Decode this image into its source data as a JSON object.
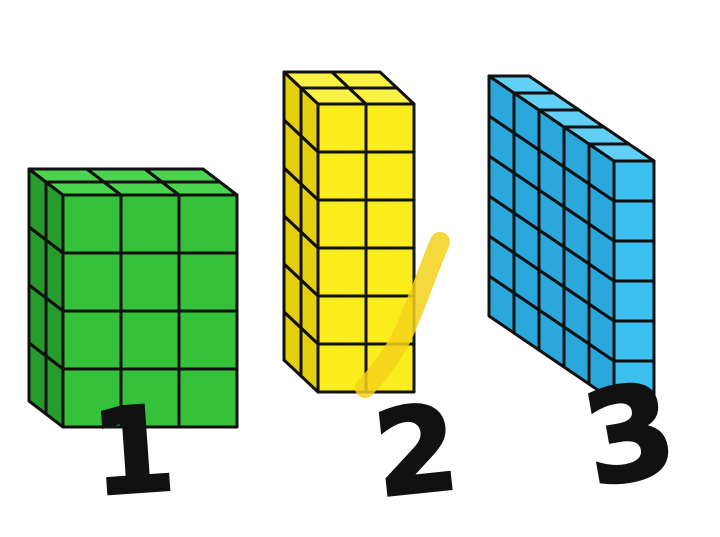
{
  "prisms": [
    {
      "id": "green-prism",
      "label": "1",
      "cubes_wide": 3,
      "cubes_deep": 2,
      "cubes_tall": 4,
      "colors": {
        "front": "#35c13a",
        "side": "#279c2d",
        "top": "#4cd451"
      }
    },
    {
      "id": "yellow-prism",
      "label": "2",
      "cubes_wide": 2,
      "cubes_deep": 2,
      "cubes_tall": 6,
      "colors": {
        "front": "#fbec1e",
        "side": "#e3cf0c",
        "top": "#fdf346"
      }
    },
    {
      "id": "blue-prism",
      "label": "3",
      "cubes_wide": 1,
      "cubes_deep": 5,
      "cubes_tall": 6,
      "colors": {
        "front": "#3bc0f0",
        "side": "#2aa8dc",
        "top": "#62d0f6"
      }
    }
  ],
  "edge_color": "#111111",
  "highlight_color": "#f3d21a"
}
